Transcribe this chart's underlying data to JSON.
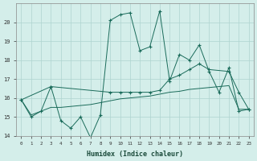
{
  "xlabel": "Humidex (Indice chaleur)",
  "ylabel": "",
  "xlim": [
    -0.5,
    23.5
  ],
  "ylim": [
    14,
    21
  ],
  "yticks": [
    14,
    15,
    16,
    17,
    18,
    19,
    20
  ],
  "xticks": [
    0,
    1,
    2,
    3,
    4,
    5,
    6,
    7,
    8,
    9,
    10,
    11,
    12,
    13,
    14,
    15,
    16,
    17,
    18,
    19,
    20,
    21,
    22,
    23
  ],
  "bg_color": "#d4eeea",
  "grid_color": "#aed4cf",
  "line_color": "#1a6b5a",
  "series1_x": [
    0,
    1,
    2,
    3,
    4,
    5,
    6,
    7,
    8,
    9,
    10,
    11,
    12,
    13,
    14,
    15,
    16,
    17,
    18,
    19,
    20,
    21,
    22,
    23
  ],
  "series1_y": [
    15.9,
    15.0,
    15.3,
    16.6,
    14.8,
    14.4,
    15.0,
    13.9,
    15.1,
    20.1,
    20.4,
    20.5,
    18.5,
    18.7,
    20.6,
    16.9,
    18.3,
    18.0,
    18.8,
    17.4,
    16.3,
    17.6,
    15.3,
    15.4
  ],
  "series2_x": [
    0,
    3,
    9,
    10,
    11,
    12,
    13,
    14,
    15,
    16,
    17,
    18,
    19,
    21,
    22,
    23
  ],
  "series2_y": [
    15.9,
    16.6,
    16.3,
    16.3,
    16.3,
    16.3,
    16.3,
    16.4,
    17.0,
    17.2,
    17.5,
    17.8,
    17.5,
    17.4,
    16.3,
    15.4
  ],
  "series3_x": [
    0,
    1,
    2,
    3,
    4,
    5,
    6,
    7,
    8,
    9,
    10,
    11,
    12,
    13,
    14,
    15,
    16,
    17,
    18,
    19,
    20,
    21,
    22,
    23
  ],
  "series3_y": [
    15.9,
    15.1,
    15.3,
    15.5,
    15.5,
    15.55,
    15.6,
    15.65,
    15.75,
    15.85,
    15.95,
    16.0,
    16.05,
    16.1,
    16.2,
    16.3,
    16.35,
    16.45,
    16.5,
    16.55,
    16.6,
    16.65,
    15.4,
    15.4
  ]
}
